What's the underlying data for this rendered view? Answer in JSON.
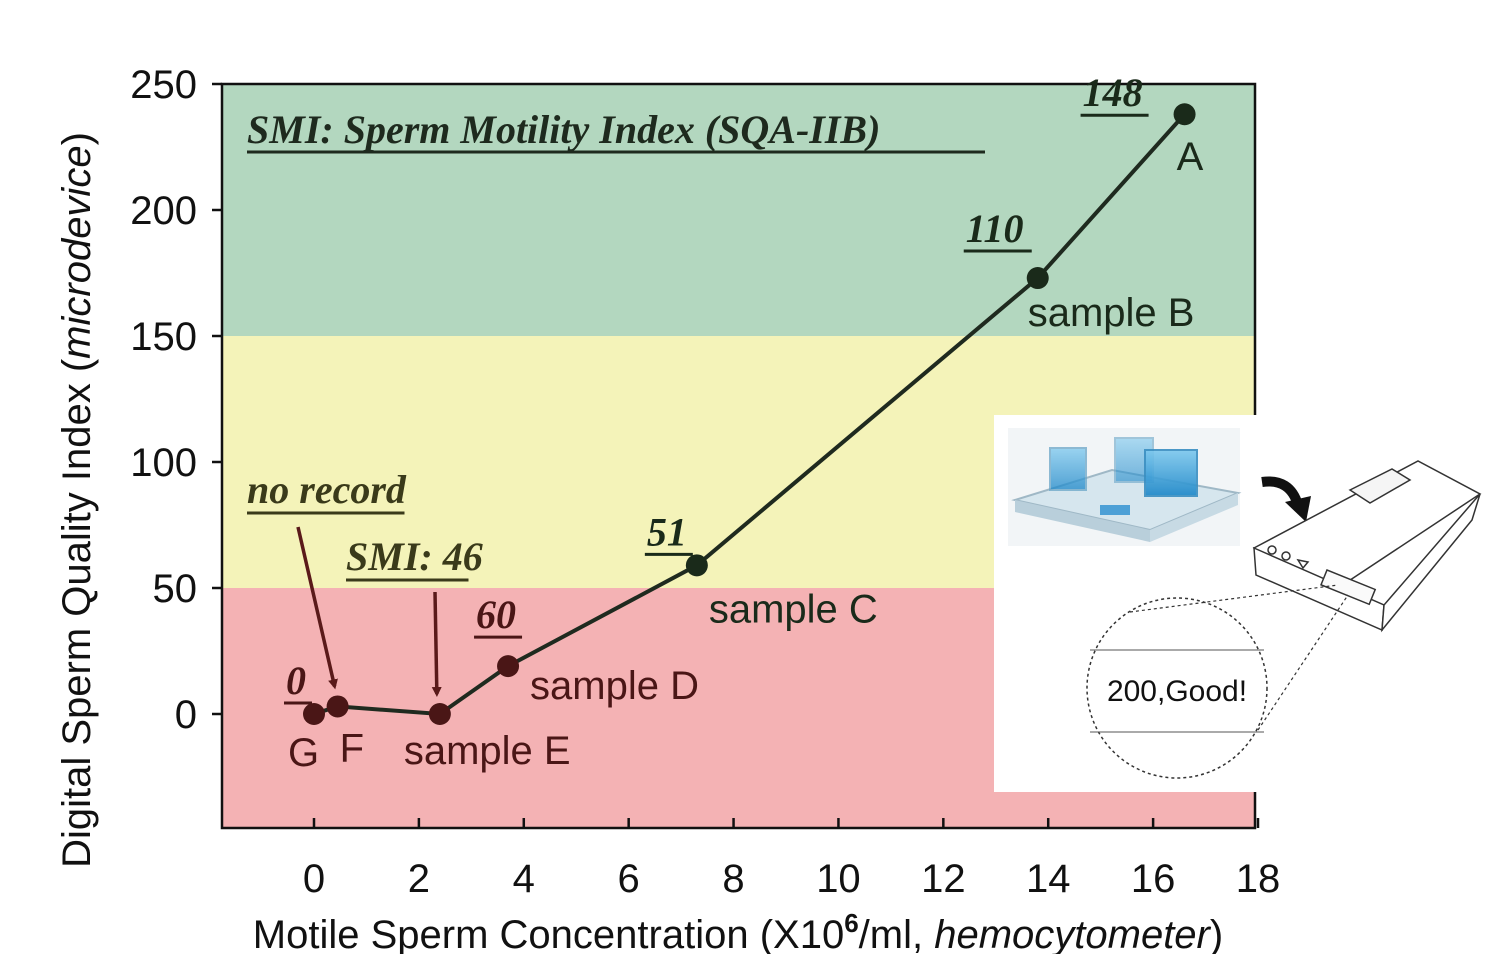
{
  "chart_data": {
    "type": "line",
    "title": "SMI: Sperm Motility Index (SQA-IIB)",
    "xlabel_parts": {
      "pre": "Motile Sperm Concentration (X10",
      "sup": "6",
      "mid": "/ml, ",
      "ital": "hemocytometer",
      "post": ")"
    },
    "ylabel_parts": {
      "pre": "Digital Sperm Quality Index (",
      "ital": "microdevice",
      "post": ")"
    },
    "xlim": [
      -1.8,
      18
    ],
    "ylim": [
      -45,
      250
    ],
    "xticks": [
      0,
      2,
      4,
      6,
      8,
      10,
      12,
      14,
      16,
      18
    ],
    "yticks": [
      0,
      50,
      100,
      150,
      200,
      250
    ],
    "bands": [
      {
        "from": 150,
        "to": 250,
        "color": "#b3d7bf"
      },
      {
        "from": 50,
        "to": 150,
        "color": "#f4f3b9"
      },
      {
        "from": -45,
        "to": 50,
        "color": "#f4b2b4"
      }
    ],
    "series": [
      {
        "points": [
          {
            "x": 0,
            "y": 0,
            "label": "G",
            "smi": "0"
          },
          {
            "x": 0.45,
            "y": 3,
            "label": "F"
          },
          {
            "x": 2.4,
            "y": 0,
            "label": "sample E"
          },
          {
            "x": 3.7,
            "y": 19,
            "label": "sample D",
            "smi": "60"
          },
          {
            "x": 7.3,
            "y": 59,
            "label": "sample C",
            "smi": "51"
          },
          {
            "x": 13.8,
            "y": 173,
            "label": "sample B",
            "smi": "110"
          },
          {
            "x": 16.6,
            "y": 238,
            "label": "A",
            "smi": "148"
          }
        ]
      }
    ],
    "annotations": [
      {
        "text": "no record",
        "target": "F"
      },
      {
        "text": "SMI: 46",
        "target": "sample E"
      }
    ],
    "inset": {
      "display_text": "200,Good!"
    }
  }
}
